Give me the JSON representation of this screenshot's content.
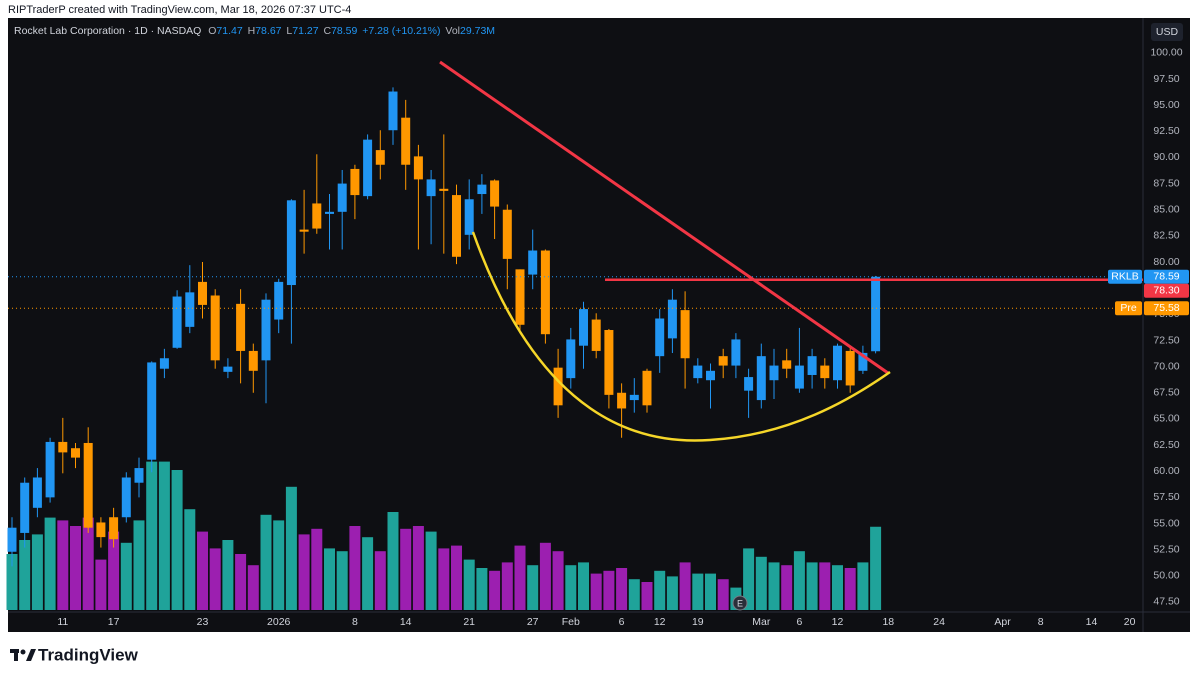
{
  "header": {
    "credit": "RIPTraderP created with TradingView.com, Mar 18, 2026 07:37 UTC-4"
  },
  "footer": {
    "brand": "TradingView"
  },
  "chart_data": {
    "type": "candlestick",
    "title": "Rocket Lab Corporation · 1D · NASDAQ",
    "legend": {
      "open_label": "O",
      "high_label": "H",
      "low_label": "L",
      "close_label": "C",
      "change": "+7.28 (+10.21%)",
      "volume_label": "Vol",
      "volume_value": "29.73M"
    },
    "currency": "USD",
    "earnings_marker": "E",
    "up_color": "#2196f3",
    "down_color": "#ff9800",
    "volume_up_color": "#1fa39a",
    "volume_down_color": "#9c1fb0",
    "grid": false,
    "categories": [
      null,
      null,
      null,
      null,
      "11",
      null,
      null,
      null,
      "17",
      null,
      null,
      null,
      null,
      null,
      null,
      "23",
      null,
      null,
      null,
      null,
      null,
      "2026",
      null,
      null,
      null,
      null,
      null,
      "8",
      null,
      null,
      null,
      "14",
      null,
      null,
      null,
      null,
      "21",
      null,
      null,
      null,
      null,
      "27",
      null,
      null,
      "Feb",
      null,
      null,
      null,
      "6",
      null,
      null,
      "12",
      null,
      null,
      "19",
      null,
      null,
      null,
      null,
      "Mar",
      null,
      null,
      "6",
      null,
      null,
      "12",
      null,
      null,
      null,
      "18",
      null,
      null,
      null,
      "24",
      null,
      null,
      null,
      null,
      "Apr",
      null,
      null,
      "8",
      null,
      null,
      null,
      "14",
      null,
      null,
      "20"
    ],
    "open": [
      52.3,
      54.1,
      56.5,
      57.5,
      62.8,
      62.2,
      62.7,
      55.1,
      55.6,
      55.6,
      58.9,
      61.1,
      69.8,
      71.8,
      73.8,
      78.1,
      76.8,
      69.5,
      76.0,
      71.5,
      70.6,
      74.5,
      77.8,
      83.1,
      85.6,
      84.6,
      84.8,
      88.9,
      86.3,
      90.7,
      92.6,
      93.8,
      90.1,
      86.3,
      87.0,
      86.4,
      82.6,
      86.5,
      87.8,
      85.0,
      79.3,
      78.8,
      81.1,
      69.9,
      68.9,
      72.0,
      74.5,
      73.5,
      67.5,
      66.8,
      69.6,
      71.0,
      72.7,
      75.4,
      68.9,
      68.7,
      71.0,
      70.1,
      67.7,
      66.8,
      68.7,
      70.6,
      67.9,
      69.2,
      70.1,
      68.7,
      71.5,
      69.6,
      71.47,
      null,
      null,
      null,
      null,
      null,
      null,
      null,
      null,
      null,
      null,
      null,
      null,
      null,
      null,
      null,
      null,
      null,
      null,
      null,
      null
    ],
    "high": [
      55.6,
      59.4,
      60.3,
      63.2,
      65.1,
      62.7,
      64.2,
      55.6,
      56.5,
      59.9,
      61.3,
      70.5,
      71.7,
      77.3,
      79.7,
      80.0,
      77.4,
      70.8,
      77.4,
      72.2,
      77.0,
      78.4,
      86.0,
      86.9,
      90.3,
      86.5,
      88.8,
      89.3,
      92.2,
      92.6,
      96.7,
      95.5,
      91.2,
      88.8,
      92.2,
      87.4,
      87.9,
      88.4,
      87.9,
      85.5,
      79.3,
      83.1,
      81.2,
      71.7,
      73.7,
      76.2,
      75.1,
      73.6,
      68.4,
      68.9,
      69.8,
      75.5,
      77.4,
      77.2,
      70.8,
      70.3,
      71.7,
      73.2,
      69.8,
      72.2,
      71.7,
      71.7,
      73.7,
      71.7,
      70.8,
      72.2,
      71.9,
      72.0,
      78.67,
      null,
      null,
      null,
      null,
      null,
      null,
      null,
      null,
      null,
      null,
      null,
      null,
      null,
      null,
      null,
      null,
      null,
      null,
      null,
      null
    ],
    "low": [
      50.9,
      52.7,
      55.6,
      57.0,
      59.8,
      60.3,
      54.1,
      52.7,
      52.7,
      55.1,
      57.5,
      59.9,
      68.9,
      71.7,
      73.2,
      74.6,
      69.8,
      68.9,
      68.4,
      67.5,
      66.5,
      73.2,
      72.2,
      80.8,
      82.7,
      81.2,
      81.2,
      84.1,
      86.0,
      87.9,
      91.2,
      86.9,
      81.2,
      81.7,
      80.8,
      79.8,
      81.2,
      84.6,
      82.2,
      77.4,
      73.2,
      77.4,
      72.2,
      65.1,
      67.9,
      69.8,
      70.8,
      66.0,
      63.2,
      65.6,
      65.6,
      69.4,
      71.3,
      67.9,
      68.4,
      66.0,
      68.9,
      68.9,
      65.1,
      66.0,
      66.9,
      68.9,
      67.5,
      67.9,
      67.9,
      67.9,
      67.5,
      69.3,
      71.27,
      null,
      null,
      null,
      null,
      null,
      null,
      null,
      null,
      null,
      null,
      null,
      null,
      null,
      null,
      null,
      null,
      null,
      null,
      null,
      null
    ],
    "close": [
      54.6,
      58.9,
      59.4,
      62.8,
      61.8,
      61.3,
      54.6,
      53.7,
      53.5,
      59.4,
      60.3,
      70.4,
      70.8,
      76.7,
      77.1,
      75.9,
      70.6,
      70.0,
      71.5,
      69.6,
      76.4,
      78.1,
      85.9,
      82.9,
      83.2,
      84.8,
      87.5,
      86.4,
      91.7,
      89.3,
      96.3,
      89.3,
      87.9,
      87.9,
      86.8,
      80.5,
      86.0,
      87.4,
      85.3,
      80.3,
      74.0,
      81.1,
      73.1,
      66.3,
      72.6,
      75.5,
      71.5,
      67.3,
      66.0,
      67.3,
      66.3,
      74.6,
      76.4,
      70.8,
      70.1,
      69.6,
      70.1,
      72.6,
      69.0,
      71.0,
      70.1,
      69.8,
      70.1,
      71.0,
      68.9,
      72.0,
      68.2,
      71.31,
      78.59,
      null,
      null,
      null,
      null,
      null,
      null,
      null,
      null,
      null,
      null,
      null,
      null,
      null,
      null,
      null,
      null,
      null,
      null,
      null,
      null
    ],
    "volume": [
      20,
      25,
      27,
      33,
      32,
      30,
      33,
      18,
      28,
      24,
      32,
      53,
      53,
      50,
      36,
      28,
      22,
      25,
      20,
      16,
      34,
      32,
      44,
      27,
      29,
      22,
      21,
      30,
      26,
      21,
      35,
      29,
      30,
      28,
      22,
      23,
      18,
      15,
      14,
      17,
      23,
      16,
      24,
      21,
      16,
      17,
      13,
      14,
      15,
      11,
      10,
      14,
      12,
      17,
      13,
      13,
      11,
      8,
      22,
      19,
      17,
      16,
      21,
      17,
      17,
      16,
      15,
      17,
      29.73,
      null,
      null,
      null,
      null,
      null,
      null,
      null,
      null,
      null,
      null,
      null,
      null,
      null,
      null,
      null,
      null,
      null,
      null,
      null,
      null
    ],
    "ylim": [
      46.54,
      103.33
    ],
    "yticks": [
      {
        "value": 47.5,
        "label": "47.50"
      },
      {
        "value": 50,
        "label": "50.00"
      },
      {
        "value": 52.5,
        "label": "52.50"
      },
      {
        "value": 55,
        "label": "55.00"
      },
      {
        "value": 57.5,
        "label": "57.50"
      },
      {
        "value": 60,
        "label": "60.00"
      },
      {
        "value": 62.5,
        "label": "62.50"
      },
      {
        "value": 65,
        "label": "65.00"
      },
      {
        "value": 67.5,
        "label": "67.50"
      },
      {
        "value": 70,
        "label": "70.00"
      },
      {
        "value": 72.5,
        "label": "72.50"
      },
      {
        "value": 75,
        "label": "75.00"
      },
      {
        "value": 77.5,
        "label": "77.50"
      },
      {
        "value": 80,
        "label": "80.00"
      },
      {
        "value": 82.5,
        "label": "82.50"
      },
      {
        "value": 85,
        "label": "85.00"
      },
      {
        "value": 87.5,
        "label": "87.50"
      },
      {
        "value": 90,
        "label": "90.00"
      },
      {
        "value": 92.5,
        "label": "92.50"
      },
      {
        "value": 95,
        "label": "95.00"
      },
      {
        "value": 97.5,
        "label": "97.50"
      },
      {
        "value": 100,
        "label": "100.00"
      }
    ],
    "price_markers": [
      {
        "name": "RKLB",
        "value": 78.59,
        "color": "#2196f3",
        "line": "dotted"
      },
      {
        "value": 78.3,
        "label": "78.30",
        "color": "#f23645",
        "line": "drawing"
      },
      {
        "name": "Pre",
        "value": 75.58,
        "color": "#ff9800",
        "line": "dotted"
      }
    ]
  }
}
